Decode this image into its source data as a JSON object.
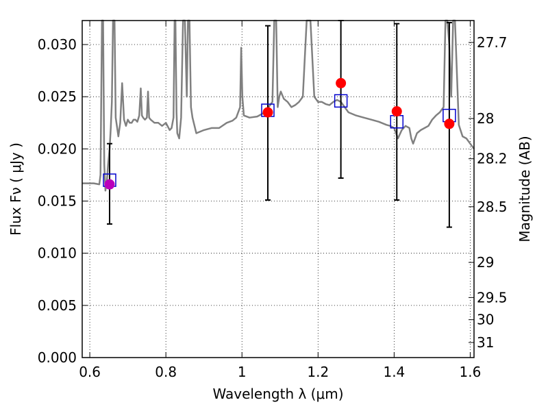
{
  "chart_data": {
    "type": "scatter",
    "title": "",
    "xlabel": "Wavelength  λ (μm)",
    "ylabel": "Flux  Fν  ( μJy )",
    "y2label": "Magnitude (AB)",
    "xlim": [
      0.58,
      1.61
    ],
    "ylim": [
      0.0,
      0.0323
    ],
    "grid": true,
    "x_ticks": [
      {
        "value": 0.6,
        "label": "0.6"
      },
      {
        "value": 0.8,
        "label": "0.8"
      },
      {
        "value": 1.0,
        "label": "1"
      },
      {
        "value": 1.2,
        "label": "1.2"
      },
      {
        "value": 1.4,
        "label": "1.4"
      },
      {
        "value": 1.6,
        "label": "1.6"
      }
    ],
    "y_ticks": [
      {
        "value": 0.0,
        "label": "0.000"
      },
      {
        "value": 0.005,
        "label": "0.005"
      },
      {
        "value": 0.01,
        "label": "0.010"
      },
      {
        "value": 0.015,
        "label": "0.015"
      },
      {
        "value": 0.02,
        "label": "0.020"
      },
      {
        "value": 0.025,
        "label": "0.025"
      },
      {
        "value": 0.03,
        "label": "0.030"
      }
    ],
    "y2_ticks": [
      {
        "value": 27.7,
        "label": "27.7"
      },
      {
        "value": 28.0,
        "label": "28"
      },
      {
        "value": 28.2,
        "label": "28.2"
      },
      {
        "value": 28.5,
        "label": "28.5"
      },
      {
        "value": 29.0,
        "label": "29"
      },
      {
        "value": 29.5,
        "label": "29.5"
      },
      {
        "value": 30.0,
        "label": "30"
      },
      {
        "value": 31.0,
        "label": "31"
      }
    ],
    "model_spectrum": {
      "color": "#808080",
      "x": [
        0.58,
        0.61,
        0.625,
        0.628,
        0.632,
        0.635,
        0.638,
        0.641,
        0.645,
        0.648,
        0.652,
        0.655,
        0.658,
        0.661,
        0.665,
        0.668,
        0.672,
        0.675,
        0.68,
        0.685,
        0.69,
        0.695,
        0.7,
        0.705,
        0.71,
        0.715,
        0.72,
        0.725,
        0.73,
        0.734,
        0.737,
        0.74,
        0.745,
        0.75,
        0.753,
        0.756,
        0.76,
        0.77,
        0.78,
        0.79,
        0.8,
        0.81,
        0.815,
        0.82,
        0.823,
        0.825,
        0.828,
        0.83,
        0.835,
        0.84,
        0.845,
        0.85,
        0.855,
        0.858,
        0.862,
        0.866,
        0.87,
        0.88,
        0.9,
        0.92,
        0.94,
        0.96,
        0.975,
        0.985,
        0.995,
        0.998,
        1.001,
        1.005,
        1.02,
        1.04,
        1.06,
        1.07,
        1.08,
        1.085,
        1.09,
        1.094,
        1.098,
        1.102,
        1.11,
        1.12,
        1.13,
        1.14,
        1.15,
        1.16,
        1.17,
        1.18,
        1.19,
        1.2,
        1.21,
        1.22,
        1.23,
        1.24,
        1.25,
        1.26,
        1.27,
        1.28,
        1.3,
        1.32,
        1.34,
        1.36,
        1.38,
        1.39,
        1.4,
        1.405,
        1.41,
        1.42,
        1.43,
        1.44,
        1.445,
        1.45,
        1.46,
        1.47,
        1.48,
        1.49,
        1.5,
        1.51,
        1.52,
        1.53,
        1.535,
        1.54,
        1.545,
        1.55,
        1.555,
        1.56,
        1.57,
        1.58,
        1.59,
        1.6,
        1.61
      ],
      "y": [
        0.0167,
        0.0167,
        0.0166,
        0.0175,
        0.0323,
        0.0323,
        0.0185,
        0.016,
        0.017,
        0.0185,
        0.02,
        0.022,
        0.0245,
        0.0323,
        0.0323,
        0.023,
        0.022,
        0.0212,
        0.0225,
        0.0263,
        0.0228,
        0.0222,
        0.0228,
        0.0225,
        0.0225,
        0.0228,
        0.0228,
        0.0226,
        0.0232,
        0.0258,
        0.0232,
        0.023,
        0.0228,
        0.023,
        0.0255,
        0.023,
        0.0228,
        0.0225,
        0.0225,
        0.0222,
        0.0225,
        0.0218,
        0.022,
        0.023,
        0.0323,
        0.0323,
        0.0235,
        0.0215,
        0.021,
        0.023,
        0.0323,
        0.0323,
        0.025,
        0.0323,
        0.0323,
        0.024,
        0.023,
        0.0215,
        0.0218,
        0.022,
        0.022,
        0.0225,
        0.0227,
        0.023,
        0.024,
        0.0297,
        0.025,
        0.0232,
        0.023,
        0.0231,
        0.0235,
        0.024,
        0.0245,
        0.0323,
        0.0323,
        0.024,
        0.025,
        0.0255,
        0.0248,
        0.0245,
        0.024,
        0.0242,
        0.0245,
        0.025,
        0.0323,
        0.0323,
        0.025,
        0.0245,
        0.0245,
        0.0243,
        0.0242,
        0.0245,
        0.0247,
        0.0245,
        0.024,
        0.0235,
        0.0232,
        0.023,
        0.0228,
        0.0226,
        0.0223,
        0.0222,
        0.022,
        0.0215,
        0.021,
        0.0218,
        0.0222,
        0.022,
        0.021,
        0.0205,
        0.0215,
        0.0218,
        0.022,
        0.0222,
        0.0228,
        0.0232,
        0.0235,
        0.024,
        0.0323,
        0.0323,
        0.03,
        0.025,
        0.0323,
        0.0323,
        0.0223,
        0.0212,
        0.021,
        0.0205,
        0.02
      ]
    },
    "series": [
      {
        "marker": "circle",
        "color": "#ff0000",
        "x": [
          0.652,
          1.068,
          1.26,
          1.407,
          1.545
        ],
        "y": [
          0.0166,
          0.0235,
          0.0263,
          0.0236,
          0.0224
        ]
      },
      {
        "marker": "square",
        "color": "#0000cc",
        "x": [
          0.652,
          1.068,
          1.26,
          1.407,
          1.545
        ],
        "y": [
          0.017,
          0.0237,
          0.0246,
          0.0226,
          0.0232
        ]
      }
    ],
    "error_bars": {
      "color": "#000000",
      "x": [
        0.652,
        1.068,
        1.26,
        1.407,
        1.545
      ],
      "lower": [
        0.0128,
        0.0151,
        0.0172,
        0.0151,
        0.0125
      ],
      "upper": [
        0.0205,
        0.0318,
        0.0323,
        0.032,
        0.0321
      ]
    }
  }
}
